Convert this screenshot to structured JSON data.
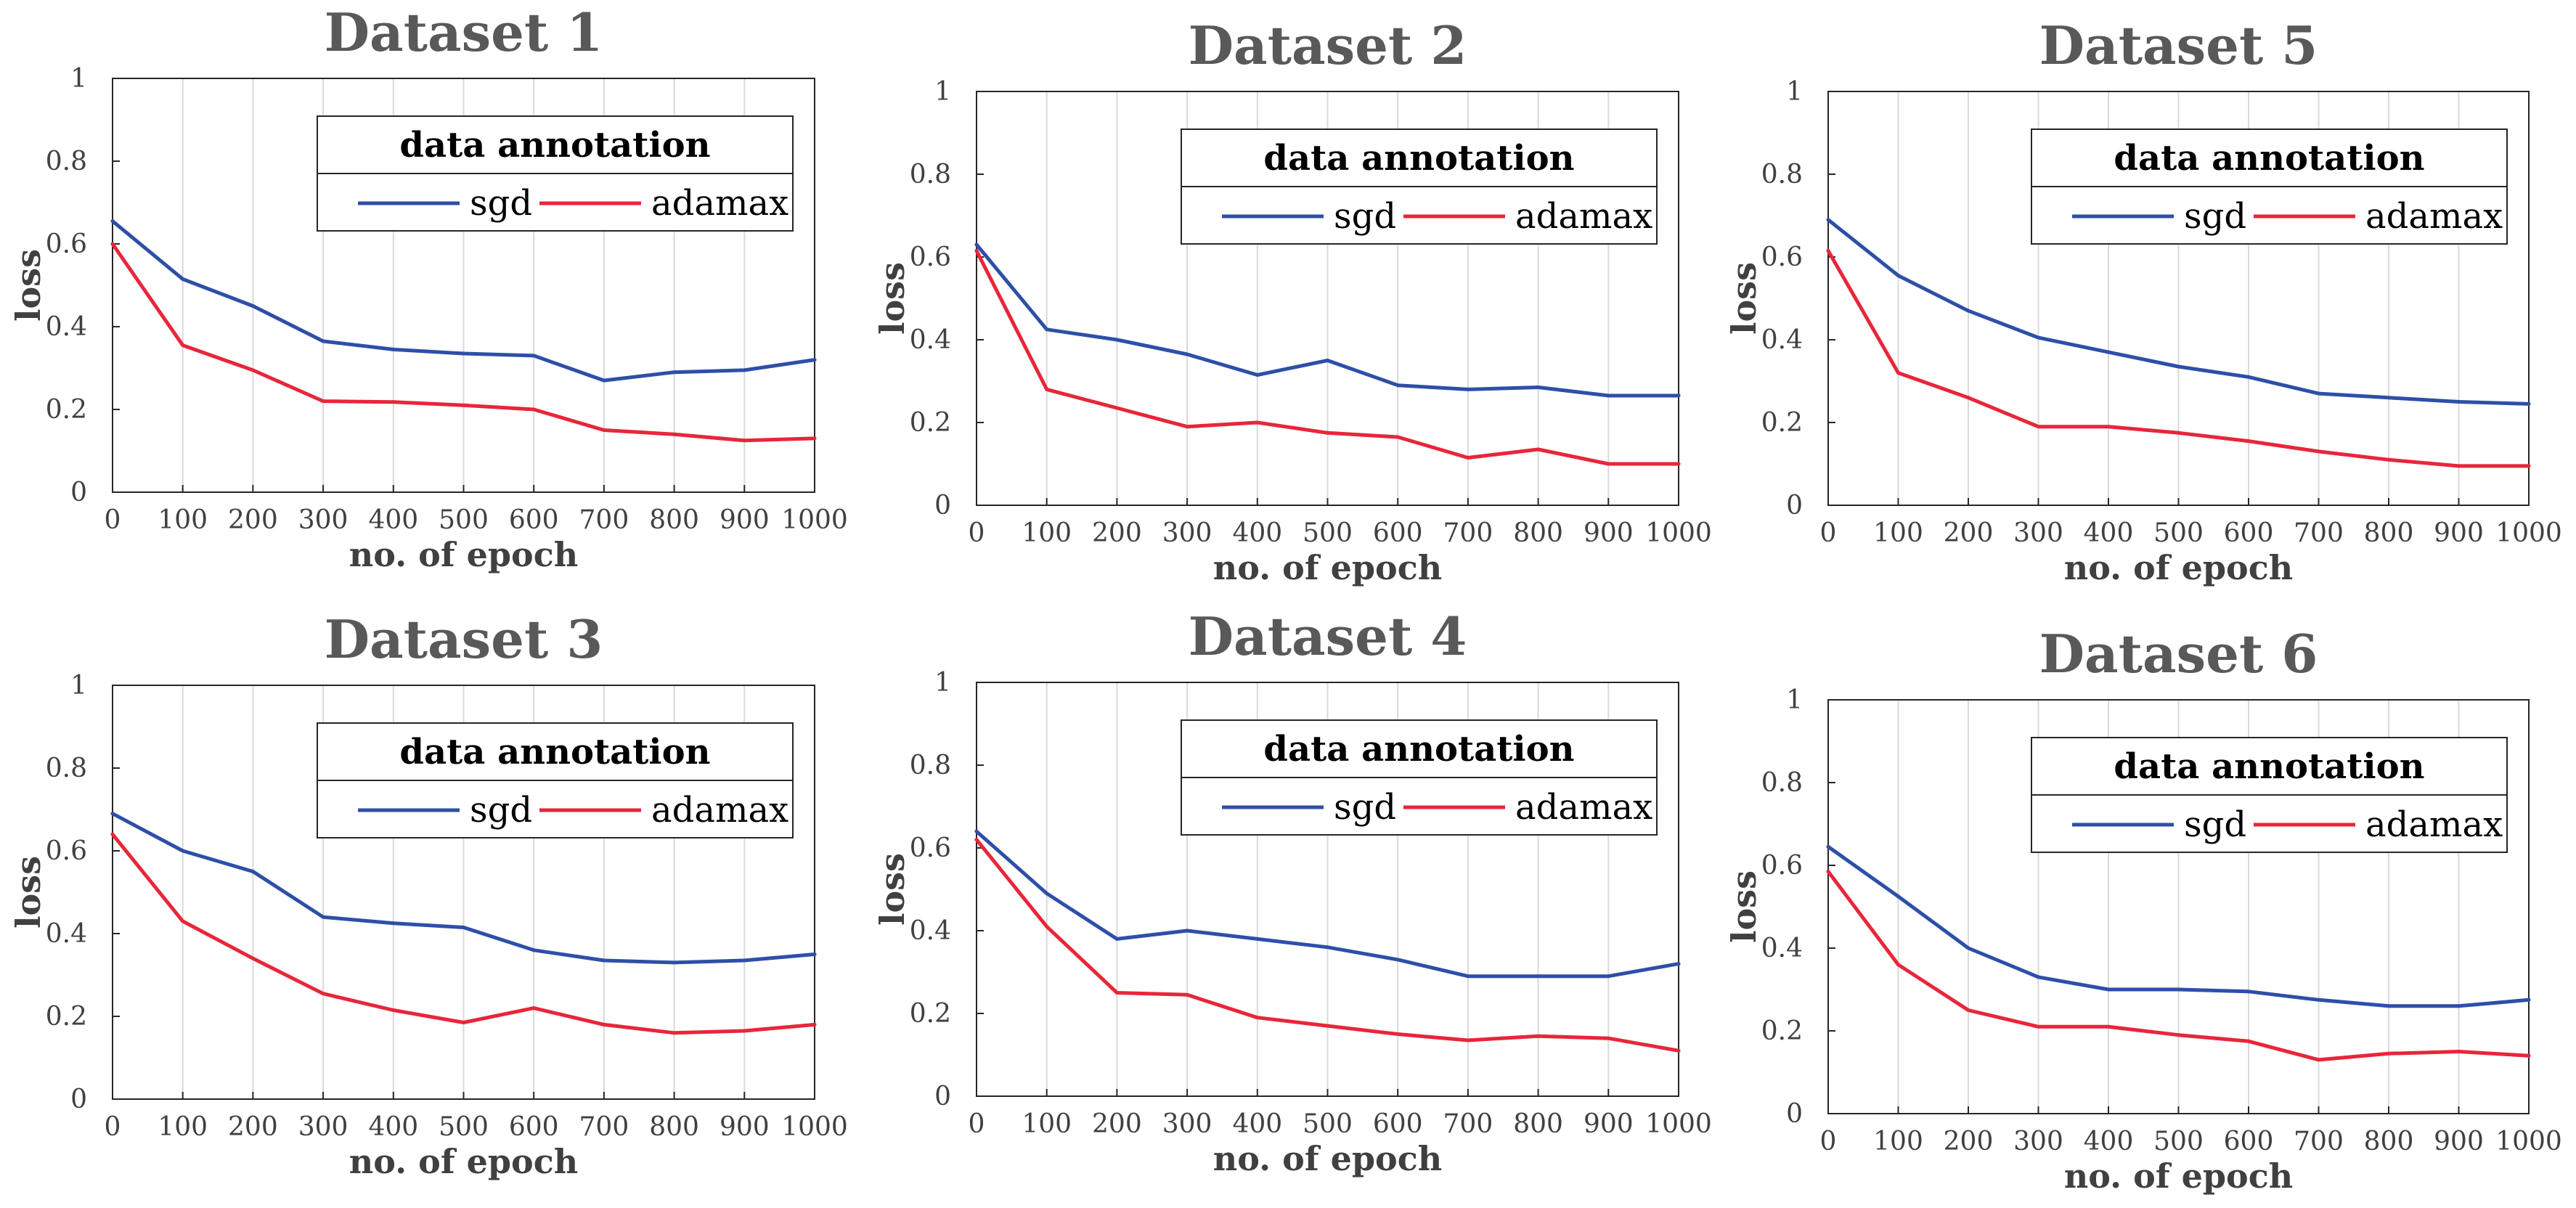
{
  "figure": {
    "background": "#ffffff"
  },
  "chart_data": [
    {
      "type": "line",
      "title": "Dataset 1",
      "xlabel": "no. of epoch",
      "ylabel": "loss",
      "x": [
        0,
        100,
        200,
        300,
        400,
        500,
        600,
        700,
        800,
        900,
        1000
      ],
      "xlim": [
        0,
        1000
      ],
      "ylim": [
        0,
        1
      ],
      "xticks": [
        "0",
        "100",
        "200",
        "300",
        "400",
        "500",
        "600",
        "700",
        "800",
        "900",
        "1000"
      ],
      "yticks": [
        "0",
        "0.2",
        "0.4",
        "0.6",
        "0.8",
        "1"
      ],
      "grid": "vertical",
      "legend": {
        "title": "data annotation",
        "position": "top-right"
      },
      "series": [
        {
          "name": "sgd",
          "color": "#2e4fa8",
          "values": [
            0.655,
            0.515,
            0.45,
            0.365,
            0.345,
            0.335,
            0.33,
            0.27,
            0.29,
            0.295,
            0.32
          ]
        },
        {
          "name": "adamax",
          "color": "#e8263a",
          "values": [
            0.6,
            0.355,
            0.295,
            0.22,
            0.218,
            0.21,
            0.2,
            0.15,
            0.14,
            0.125,
            0.13
          ]
        }
      ]
    },
    {
      "type": "line",
      "title": "Dataset 2",
      "xlabel": "no. of epoch",
      "ylabel": "loss",
      "x": [
        0,
        100,
        200,
        300,
        400,
        500,
        600,
        700,
        800,
        900,
        1000
      ],
      "xlim": [
        0,
        1000
      ],
      "ylim": [
        0,
        1
      ],
      "xticks": [
        "0",
        "100",
        "200",
        "300",
        "400",
        "500",
        "600",
        "700",
        "800",
        "900",
        "1000"
      ],
      "yticks": [
        "0",
        "0.2",
        "0.4",
        "0.6",
        "0.8",
        "1"
      ],
      "grid": "vertical",
      "legend": {
        "title": "data annotation",
        "position": "top-right"
      },
      "series": [
        {
          "name": "sgd",
          "color": "#2e4fa8",
          "values": [
            0.63,
            0.425,
            0.4,
            0.365,
            0.315,
            0.35,
            0.29,
            0.28,
            0.285,
            0.265,
            0.265
          ]
        },
        {
          "name": "adamax",
          "color": "#e8263a",
          "values": [
            0.615,
            0.28,
            0.235,
            0.19,
            0.2,
            0.175,
            0.165,
            0.115,
            0.135,
            0.1,
            0.1
          ]
        }
      ]
    },
    {
      "type": "line",
      "title": "Dataset 5",
      "xlabel": "no. of epoch",
      "ylabel": "loss",
      "x": [
        0,
        100,
        200,
        300,
        400,
        500,
        600,
        700,
        800,
        900,
        1000
      ],
      "xlim": [
        0,
        1000
      ],
      "ylim": [
        0,
        1
      ],
      "xticks": [
        "0",
        "100",
        "200",
        "300",
        "400",
        "500",
        "600",
        "700",
        "800",
        "900",
        "1000"
      ],
      "yticks": [
        "0",
        "0.2",
        "0.4",
        "0.6",
        "0.8",
        "1"
      ],
      "grid": "vertical",
      "legend": {
        "title": "data annotation",
        "position": "top-right"
      },
      "series": [
        {
          "name": "sgd",
          "color": "#2e4fa8",
          "values": [
            0.69,
            0.555,
            0.47,
            0.405,
            0.37,
            0.335,
            0.31,
            0.27,
            0.26,
            0.25,
            0.245
          ]
        },
        {
          "name": "adamax",
          "color": "#e8263a",
          "values": [
            0.615,
            0.32,
            0.26,
            0.19,
            0.19,
            0.175,
            0.155,
            0.13,
            0.11,
            0.095,
            0.095
          ]
        }
      ]
    },
    {
      "type": "line",
      "title": "Dataset 3",
      "xlabel": "no. of epoch",
      "ylabel": "loss",
      "x": [
        0,
        100,
        200,
        300,
        400,
        500,
        600,
        700,
        800,
        900,
        1000
      ],
      "xlim": [
        0,
        1000
      ],
      "ylim": [
        0,
        1
      ],
      "xticks": [
        "0",
        "100",
        "200",
        "300",
        "400",
        "500",
        "600",
        "700",
        "800",
        "900",
        "1000"
      ],
      "yticks": [
        "0",
        "0.2",
        "0.4",
        "0.6",
        "0.8",
        "1"
      ],
      "grid": "vertical",
      "legend": {
        "title": "data annotation",
        "position": "top-right"
      },
      "series": [
        {
          "name": "sgd",
          "color": "#2e4fa8",
          "values": [
            0.69,
            0.6,
            0.55,
            0.44,
            0.425,
            0.415,
            0.36,
            0.335,
            0.33,
            0.335,
            0.35
          ]
        },
        {
          "name": "adamax",
          "color": "#e8263a",
          "values": [
            0.64,
            0.43,
            0.34,
            0.255,
            0.215,
            0.185,
            0.22,
            0.18,
            0.16,
            0.165,
            0.18
          ]
        }
      ]
    },
    {
      "type": "line",
      "title": "Dataset 4",
      "xlabel": "no. of epoch",
      "ylabel": "loss",
      "x": [
        0,
        100,
        200,
        300,
        400,
        500,
        600,
        700,
        800,
        900,
        1000
      ],
      "xlim": [
        0,
        1000
      ],
      "ylim": [
        0,
        1
      ],
      "xticks": [
        "0",
        "100",
        "200",
        "300",
        "400",
        "500",
        "600",
        "700",
        "800",
        "900",
        "1000"
      ],
      "yticks": [
        "0",
        "0.2",
        "0.4",
        "0.6",
        "0.8",
        "1"
      ],
      "grid": "vertical",
      "legend": {
        "title": "data annotation",
        "position": "top-right"
      },
      "series": [
        {
          "name": "sgd",
          "color": "#2e4fa8",
          "values": [
            0.64,
            0.49,
            0.38,
            0.4,
            0.38,
            0.36,
            0.33,
            0.29,
            0.29,
            0.29,
            0.32
          ]
        },
        {
          "name": "adamax",
          "color": "#e8263a",
          "values": [
            0.62,
            0.41,
            0.25,
            0.245,
            0.19,
            0.17,
            0.15,
            0.135,
            0.145,
            0.14,
            0.11
          ]
        }
      ]
    },
    {
      "type": "line",
      "title": "Dataset 6",
      "xlabel": "no. of epoch",
      "ylabel": "loss",
      "x": [
        0,
        100,
        200,
        300,
        400,
        500,
        600,
        700,
        800,
        900,
        1000
      ],
      "xlim": [
        0,
        1000
      ],
      "ylim": [
        0,
        1
      ],
      "xticks": [
        "0",
        "100",
        "200",
        "300",
        "400",
        "500",
        "600",
        "700",
        "800",
        "900",
        "1000"
      ],
      "yticks": [
        "0",
        "0.2",
        "0.4",
        "0.6",
        "0.8",
        "1"
      ],
      "grid": "vertical",
      "legend": {
        "title": "data annotation",
        "position": "top-right"
      },
      "series": [
        {
          "name": "sgd",
          "color": "#2e4fa8",
          "values": [
            0.645,
            0.525,
            0.4,
            0.33,
            0.3,
            0.3,
            0.295,
            0.275,
            0.26,
            0.26,
            0.275
          ]
        },
        {
          "name": "adamax",
          "color": "#e8263a",
          "values": [
            0.585,
            0.36,
            0.25,
            0.21,
            0.21,
            0.19,
            0.175,
            0.13,
            0.145,
            0.15,
            0.14
          ]
        }
      ]
    }
  ]
}
